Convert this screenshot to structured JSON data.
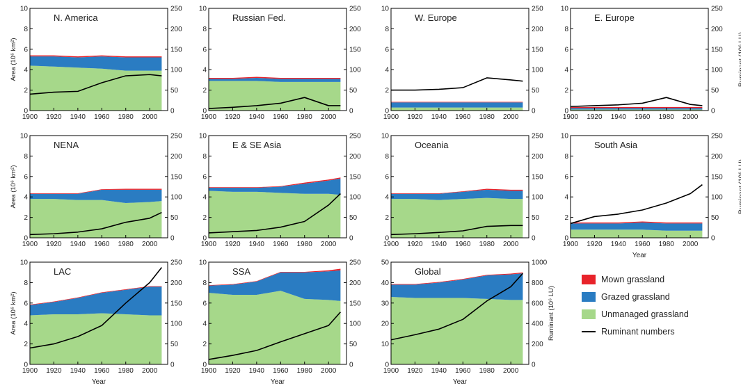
{
  "figure": {
    "x_ticks": [
      1900,
      1920,
      1940,
      1960,
      1980,
      2000
    ],
    "x_label": "Year",
    "y_label_left": "Area (10⁶ km²)",
    "y_label_right": "Ruminant (10⁶ LU)",
    "y_label_right_global": "Ruminant (10⁶ LU)"
  },
  "legend": {
    "items": [
      {
        "label": "Mown grassland",
        "color": "#e8232a",
        "kind": "box"
      },
      {
        "label": "Grazed grassland",
        "color": "#2a7cc2",
        "kind": "box"
      },
      {
        "label": "Unmanaged grassland",
        "color": "#a6d88a",
        "kind": "box"
      },
      {
        "label": "Ruminant numbers",
        "color": "#000000",
        "kind": "line"
      }
    ]
  },
  "chart_data": [
    {
      "type": "area",
      "title": "N. America",
      "x": [
        1900,
        1920,
        1940,
        1960,
        1980,
        2000,
        2010
      ],
      "ylim": [
        0,
        10
      ],
      "ylim_right": [
        0,
        250
      ],
      "yticks": [
        0,
        2,
        4,
        6,
        8,
        10
      ],
      "yticks_right": [
        0,
        50,
        100,
        150,
        200,
        250
      ],
      "series": [
        {
          "name": "Unmanaged grassland",
          "values": [
            4.4,
            4.3,
            4.2,
            4.1,
            3.9,
            3.9,
            3.9
          ]
        },
        {
          "name": "Grazed grassland",
          "values": [
            0.9,
            1.0,
            1.0,
            1.2,
            1.3,
            1.3,
            1.3
          ]
        },
        {
          "name": "Mown grassland",
          "values": [
            0.1,
            0.1,
            0.1,
            0.1,
            0.1,
            0.1,
            0.1
          ]
        },
        {
          "name": "Ruminant numbers",
          "axis": "right",
          "values": [
            40,
            45,
            47,
            68,
            85,
            88,
            85
          ]
        }
      ]
    },
    {
      "type": "area",
      "title": "Russian Fed.",
      "x": [
        1900,
        1920,
        1940,
        1960,
        1980,
        2000,
        2010
      ],
      "ylim": [
        0,
        10
      ],
      "ylim_right": [
        0,
        250
      ],
      "yticks": [
        0,
        2,
        4,
        6,
        8,
        10
      ],
      "yticks_right": [
        0,
        50,
        100,
        150,
        200,
        250
      ],
      "series": [
        {
          "name": "Unmanaged grassland",
          "values": [
            2.9,
            2.9,
            2.9,
            2.8,
            2.8,
            2.8,
            2.8
          ]
        },
        {
          "name": "Grazed grassland",
          "values": [
            0.2,
            0.2,
            0.3,
            0.3,
            0.3,
            0.3,
            0.3
          ]
        },
        {
          "name": "Mown grassland",
          "values": [
            0.1,
            0.1,
            0.1,
            0.1,
            0.1,
            0.1,
            0.1
          ]
        },
        {
          "name": "Ruminant numbers",
          "axis": "right",
          "values": [
            5,
            8,
            12,
            18,
            32,
            12,
            12
          ]
        }
      ]
    },
    {
      "type": "area",
      "title": "W. Europe",
      "x": [
        1900,
        1920,
        1940,
        1960,
        1980,
        2000,
        2010
      ],
      "ylim": [
        0,
        10
      ],
      "ylim_right": [
        0,
        250
      ],
      "yticks": [
        0,
        2,
        4,
        6,
        8,
        10
      ],
      "yticks_right": [
        0,
        50,
        100,
        150,
        200,
        250
      ],
      "series": [
        {
          "name": "Unmanaged grassland",
          "values": [
            0.3,
            0.3,
            0.3,
            0.3,
            0.3,
            0.3,
            0.3
          ]
        },
        {
          "name": "Grazed grassland",
          "values": [
            0.5,
            0.5,
            0.5,
            0.5,
            0.5,
            0.5,
            0.5
          ]
        },
        {
          "name": "Mown grassland",
          "values": [
            0.05,
            0.05,
            0.05,
            0.05,
            0.05,
            0.05,
            0.05
          ]
        },
        {
          "name": "Ruminant numbers",
          "axis": "right",
          "values": [
            50,
            50,
            52,
            56,
            80,
            75,
            72
          ]
        }
      ]
    },
    {
      "type": "area",
      "title": "E. Europe",
      "x": [
        1900,
        1920,
        1940,
        1960,
        1980,
        2000,
        2010
      ],
      "ylim": [
        0,
        10
      ],
      "ylim_right": [
        0,
        250
      ],
      "yticks": [
        0,
        2,
        4,
        6,
        8,
        10
      ],
      "yticks_right": [
        0,
        50,
        100,
        150,
        200,
        250
      ],
      "series": [
        {
          "name": "Unmanaged grassland",
          "values": [
            0.1,
            0.1,
            0.1,
            0.1,
            0.1,
            0.1,
            0.1
          ]
        },
        {
          "name": "Grazed grassland",
          "values": [
            0.15,
            0.15,
            0.15,
            0.15,
            0.15,
            0.15,
            0.15
          ]
        },
        {
          "name": "Mown grassland",
          "values": [
            0.1,
            0.1,
            0.1,
            0.1,
            0.1,
            0.1,
            0.1
          ]
        },
        {
          "name": "Ruminant numbers",
          "axis": "right",
          "values": [
            10,
            12,
            14,
            18,
            32,
            15,
            12
          ]
        }
      ]
    },
    {
      "type": "area",
      "title": "NENA",
      "x": [
        1900,
        1920,
        1940,
        1960,
        1980,
        2000,
        2010
      ],
      "ylim": [
        0,
        10
      ],
      "ylim_right": [
        0,
        250
      ],
      "yticks": [
        0,
        2,
        4,
        6,
        8,
        10
      ],
      "yticks_right": [
        0,
        50,
        100,
        150,
        200,
        250
      ],
      "series": [
        {
          "name": "Unmanaged grassland",
          "values": [
            3.8,
            3.8,
            3.7,
            3.7,
            3.4,
            3.5,
            3.6
          ]
        },
        {
          "name": "Grazed grassland",
          "values": [
            0.5,
            0.5,
            0.6,
            1.0,
            1.3,
            1.2,
            1.1
          ]
        },
        {
          "name": "Mown grassland",
          "values": [
            0.05,
            0.05,
            0.05,
            0.05,
            0.1,
            0.1,
            0.1
          ]
        },
        {
          "name": "Ruminant numbers",
          "axis": "right",
          "values": [
            8,
            10,
            14,
            22,
            38,
            48,
            62
          ]
        }
      ]
    },
    {
      "type": "area",
      "title": "E & SE Asia",
      "x": [
        1900,
        1920,
        1940,
        1960,
        1980,
        2000,
        2010
      ],
      "ylim": [
        0,
        10
      ],
      "ylim_right": [
        0,
        250
      ],
      "yticks": [
        0,
        2,
        4,
        6,
        8,
        10
      ],
      "yticks_right": [
        0,
        50,
        100,
        150,
        200,
        250
      ],
      "series": [
        {
          "name": "Unmanaged grassland",
          "values": [
            4.6,
            4.5,
            4.5,
            4.4,
            4.3,
            4.3,
            4.2
          ]
        },
        {
          "name": "Grazed grassland",
          "values": [
            0.3,
            0.4,
            0.4,
            0.6,
            1.0,
            1.3,
            1.6
          ]
        },
        {
          "name": "Mown grassland",
          "values": [
            0.05,
            0.05,
            0.05,
            0.05,
            0.1,
            0.1,
            0.1
          ]
        },
        {
          "name": "Ruminant numbers",
          "axis": "right",
          "values": [
            12,
            15,
            18,
            26,
            40,
            80,
            108
          ]
        }
      ]
    },
    {
      "type": "area",
      "title": "Oceania",
      "x": [
        1900,
        1920,
        1940,
        1960,
        1980,
        2000,
        2010
      ],
      "ylim": [
        0,
        10
      ],
      "ylim_right": [
        0,
        250
      ],
      "yticks": [
        0,
        2,
        4,
        6,
        8,
        10
      ],
      "yticks_right": [
        0,
        50,
        100,
        150,
        200,
        250
      ],
      "series": [
        {
          "name": "Unmanaged grassland",
          "values": [
            3.8,
            3.8,
            3.7,
            3.8,
            3.9,
            3.8,
            3.8
          ]
        },
        {
          "name": "Grazed grassland",
          "values": [
            0.5,
            0.5,
            0.6,
            0.7,
            0.8,
            0.8,
            0.8
          ]
        },
        {
          "name": "Mown grassland",
          "values": [
            0.05,
            0.05,
            0.05,
            0.05,
            0.1,
            0.1,
            0.1
          ]
        },
        {
          "name": "Ruminant numbers",
          "axis": "right",
          "values": [
            8,
            10,
            13,
            17,
            28,
            30,
            30
          ]
        }
      ]
    },
    {
      "type": "area",
      "title": "South Asia",
      "x": [
        1900,
        1920,
        1940,
        1960,
        1980,
        2000,
        2010
      ],
      "ylim": [
        0,
        10
      ],
      "ylim_right": [
        0,
        250
      ],
      "yticks": [
        0,
        2,
        4,
        6,
        8,
        10
      ],
      "yticks_right": [
        0,
        50,
        100,
        150,
        200,
        250
      ],
      "series": [
        {
          "name": "Unmanaged grassland",
          "values": [
            0.8,
            0.8,
            0.8,
            0.8,
            0.7,
            0.7,
            0.7
          ]
        },
        {
          "name": "Grazed grassland",
          "values": [
            0.6,
            0.6,
            0.6,
            0.7,
            0.7,
            0.7,
            0.7
          ]
        },
        {
          "name": "Mown grassland",
          "values": [
            0.1,
            0.1,
            0.1,
            0.1,
            0.1,
            0.1,
            0.1
          ]
        },
        {
          "name": "Ruminant numbers",
          "axis": "right",
          "values": [
            35,
            52,
            58,
            68,
            85,
            108,
            130
          ]
        }
      ]
    },
    {
      "type": "area",
      "title": "LAC",
      "x": [
        1900,
        1920,
        1940,
        1960,
        1980,
        2000,
        2010
      ],
      "ylim": [
        0,
        10
      ],
      "ylim_right": [
        0,
        250
      ],
      "yticks": [
        0,
        2,
        4,
        6,
        8,
        10
      ],
      "yticks_right": [
        0,
        50,
        100,
        150,
        200,
        250
      ],
      "series": [
        {
          "name": "Unmanaged grassland",
          "values": [
            4.8,
            4.9,
            4.9,
            5.0,
            4.9,
            4.8,
            4.8
          ]
        },
        {
          "name": "Grazed grassland",
          "values": [
            1.0,
            1.2,
            1.6,
            2.0,
            2.4,
            2.8,
            2.8
          ]
        },
        {
          "name": "Mown grassland",
          "values": [
            0.05,
            0.05,
            0.05,
            0.05,
            0.05,
            0.05,
            0.05
          ]
        },
        {
          "name": "Ruminant numbers",
          "axis": "right",
          "values": [
            40,
            50,
            68,
            95,
            150,
            200,
            237
          ]
        }
      ]
    },
    {
      "type": "area",
      "title": "SSA",
      "x": [
        1900,
        1920,
        1940,
        1960,
        1980,
        2000,
        2010
      ],
      "ylim": [
        0,
        10
      ],
      "ylim_right": [
        0,
        250
      ],
      "yticks": [
        0,
        2,
        4,
        6,
        8,
        10
      ],
      "yticks_right": [
        0,
        50,
        100,
        150,
        200,
        250
      ],
      "series": [
        {
          "name": "Unmanaged grassland",
          "values": [
            7.0,
            6.8,
            6.8,
            7.2,
            6.4,
            6.3,
            6.2
          ]
        },
        {
          "name": "Grazed grassland",
          "values": [
            0.7,
            1.0,
            1.3,
            1.8,
            2.6,
            2.8,
            3.0
          ]
        },
        {
          "name": "Mown grassland",
          "values": [
            0.05,
            0.05,
            0.05,
            0.05,
            0.05,
            0.1,
            0.15
          ]
        },
        {
          "name": "Ruminant numbers",
          "axis": "right",
          "values": [
            12,
            22,
            34,
            55,
            75,
            95,
            128
          ]
        }
      ]
    },
    {
      "type": "area",
      "title": "Global",
      "x": [
        1900,
        1920,
        1940,
        1960,
        1980,
        2000,
        2010
      ],
      "ylim": [
        0,
        50
      ],
      "ylim_right": [
        0,
        1000
      ],
      "yticks": [
        0,
        10,
        20,
        30,
        40,
        50
      ],
      "yticks_right": [
        0,
        200,
        400,
        600,
        800,
        1000
      ],
      "series": [
        {
          "name": "Unmanaged grassland",
          "values": [
            33,
            32.5,
            32.5,
            32.5,
            32,
            31.5,
            31.5
          ]
        },
        {
          "name": "Grazed grassland",
          "values": [
            6.0,
            6.5,
            7.5,
            9.0,
            11.5,
            12.5,
            13.0
          ]
        },
        {
          "name": "Mown grassland",
          "values": [
            0.3,
            0.3,
            0.3,
            0.3,
            0.3,
            0.4,
            0.5
          ]
        },
        {
          "name": "Ruminant numbers",
          "axis": "right",
          "values": [
            240,
            290,
            345,
            440,
            620,
            760,
            890
          ]
        }
      ]
    }
  ]
}
